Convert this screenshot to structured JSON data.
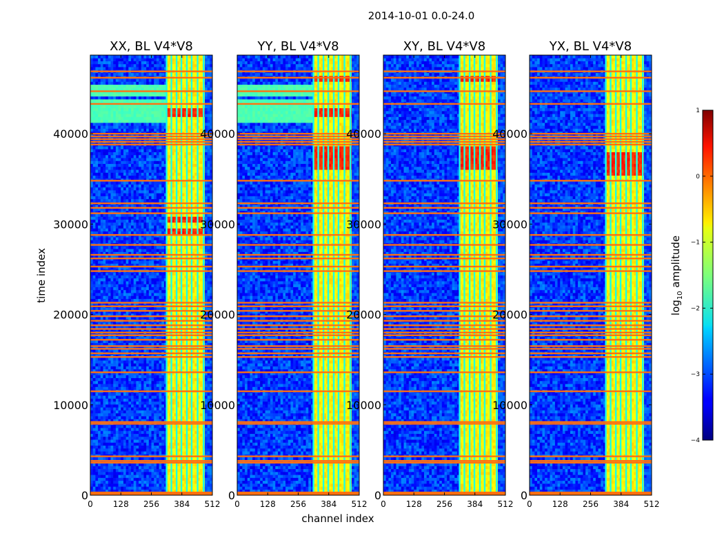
{
  "title": "2014-10-01 0.0-24.0",
  "chart_data": {
    "type": "heatmap",
    "title": "2014-10-01 0.0-24.0",
    "xlabel": "channel index",
    "ylabel": "time index",
    "xlim": [
      0,
      512
    ],
    "ylim": [
      0,
      48700
    ],
    "x_ticks": [
      0,
      128,
      256,
      384,
      512
    ],
    "y_ticks": [
      0,
      10000,
      20000,
      30000,
      40000
    ],
    "panels": [
      {
        "title": "XX, BL V4*V8",
        "pol": "XX",
        "sky_rows": [
          [
            41200,
            43800
          ],
          [
            44200,
            45400
          ]
        ],
        "hot_rows": [
          [
            29000,
            29600
          ],
          [
            30300,
            30800
          ],
          [
            42000,
            42700
          ]
        ]
      },
      {
        "title": "YY, BL V4*V8",
        "pol": "YY",
        "sky_rows": [
          [
            41200,
            43800
          ],
          [
            44200,
            45400
          ]
        ],
        "hot_rows": [
          [
            36000,
            38500
          ],
          [
            42000,
            43000
          ],
          [
            45700,
            46500
          ]
        ]
      },
      {
        "title": "XY, BL V4*V8",
        "pol": "XY",
        "sky_rows": [],
        "hot_rows": [
          [
            36000,
            38500
          ],
          [
            45700,
            46300
          ]
        ]
      },
      {
        "title": "YX, BL V4*V8",
        "pol": "YX",
        "sky_rows": [],
        "hot_rows": [
          [
            35500,
            38000
          ]
        ]
      }
    ],
    "flagged_time_rows": [
      100,
      200,
      300,
      3600,
      3800,
      4300,
      7900,
      8100,
      11500,
      13600,
      15300,
      15700,
      16200,
      16500,
      17200,
      17700,
      18000,
      18400,
      18800,
      19300,
      19800,
      20400,
      20900,
      21300,
      24800,
      25300,
      26200,
      26600,
      27700,
      28800,
      31200,
      31800,
      32300,
      34800,
      38800,
      39100,
      39400,
      39700,
      40000,
      43300,
      44700,
      46200,
      46900
    ],
    "bright_channel_band": [
      320,
      475
    ],
    "bright_channel_edges": [
      320,
      340,
      362,
      382,
      405,
      425,
      450,
      475
    ],
    "colorbar": {
      "label": "log10 amplitude",
      "ticks": [
        1,
        0,
        -1,
        -2,
        -3,
        -4
      ],
      "range": [
        -4,
        1
      ],
      "colormap": "jet"
    }
  }
}
